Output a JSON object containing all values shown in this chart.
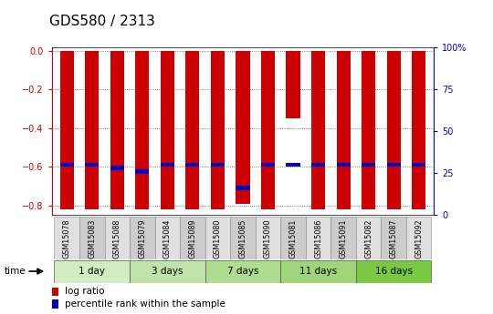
{
  "title": "GDS580 / 2313",
  "samples": [
    "GSM15078",
    "GSM15083",
    "GSM15088",
    "GSM15079",
    "GSM15084",
    "GSM15089",
    "GSM15080",
    "GSM15085",
    "GSM15090",
    "GSM15081",
    "GSM15086",
    "GSM15091",
    "GSM15082",
    "GSM15087",
    "GSM15092"
  ],
  "log_ratios": [
    -0.82,
    -0.82,
    -0.82,
    -0.82,
    -0.82,
    -0.82,
    -0.82,
    -0.79,
    -0.82,
    -0.35,
    -0.82,
    -0.82,
    -0.82,
    -0.82,
    -0.82
  ],
  "percentile_ranks": [
    30,
    30,
    28,
    26,
    30,
    30,
    30,
    16,
    30,
    30,
    30,
    30,
    30,
    30,
    30
  ],
  "time_groups": [
    {
      "label": "1 day",
      "start": 0,
      "end": 3
    },
    {
      "label": "3 days",
      "start": 3,
      "end": 6
    },
    {
      "label": "7 days",
      "start": 6,
      "end": 9
    },
    {
      "label": "11 days",
      "start": 9,
      "end": 12
    },
    {
      "label": "16 days",
      "start": 12,
      "end": 15
    }
  ],
  "time_group_colors": [
    "#d0ecc0",
    "#c0e4a8",
    "#b0dc90",
    "#a0d478",
    "#78c840"
  ],
  "bar_color": "#cc0000",
  "percentile_color": "#0000cc",
  "ylim": [
    -0.85,
    0.02
  ],
  "yticks": [
    0,
    -0.2,
    -0.4,
    -0.6,
    -0.8
  ],
  "y2ticks": [
    0,
    25,
    50,
    75,
    100
  ],
  "bar_width": 0.55,
  "title_fontsize": 11,
  "tick_fontsize": 7,
  "label_fontsize": 7.5
}
